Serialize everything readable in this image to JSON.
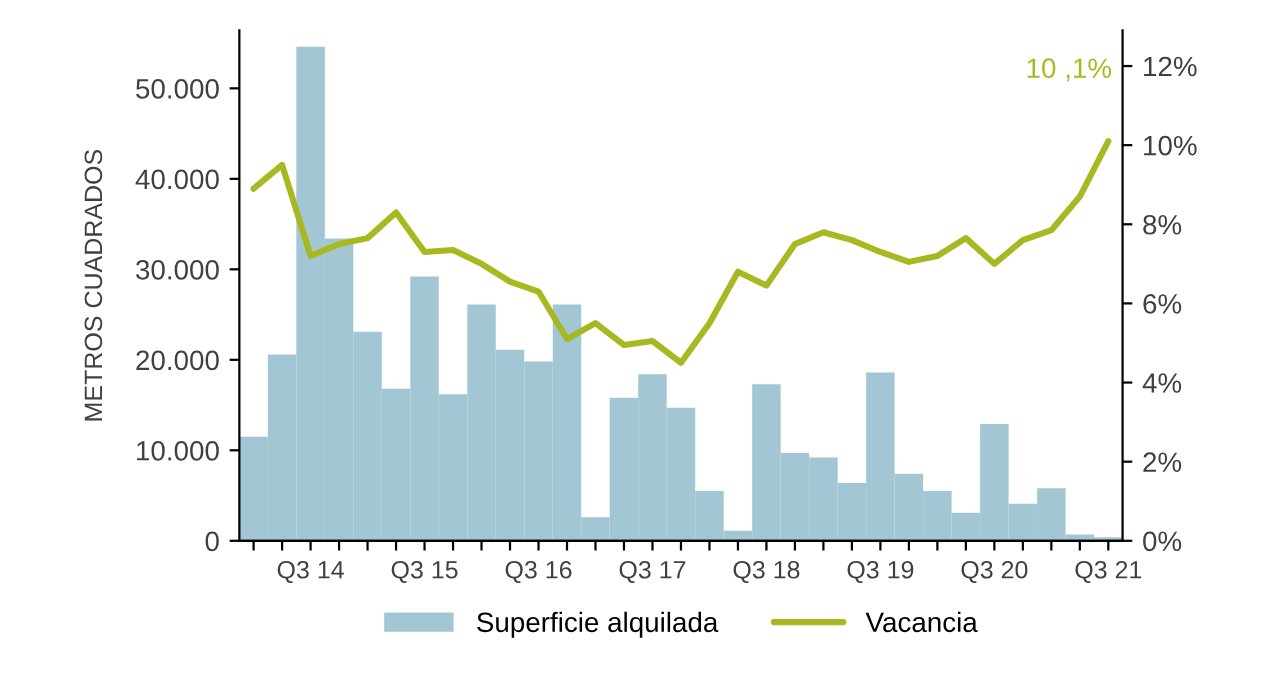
{
  "chart_data": {
    "type": "bar",
    "ylabel": "METROS CUADRADOS",
    "categories": [
      null,
      null,
      "Q3 14",
      null,
      null,
      null,
      "Q3 15",
      null,
      null,
      null,
      "Q3 16",
      null,
      null,
      null,
      "Q3 17",
      null,
      null,
      null,
      "Q3 18",
      null,
      null,
      null,
      "Q3 19",
      null,
      null,
      null,
      "Q3 20",
      null,
      null,
      null,
      "Q3 21"
    ],
    "series": [
      {
        "name": "Superficie alquilada",
        "color": "#a3c6d4",
        "values": [
          11500,
          20600,
          54600,
          33400,
          23100,
          16800,
          29200,
          16200,
          26100,
          21100,
          19800,
          26100,
          2600,
          15800,
          18400,
          14700,
          5500,
          1100,
          17300,
          9700,
          9200,
          6400,
          18600,
          7400,
          5500,
          3100,
          12900,
          4100,
          5800,
          700,
          400
        ]
      },
      {
        "name": "Vacancia",
        "type": "line",
        "axis": "y2",
        "color": "#a8b820",
        "values": [
          8.9,
          9.5,
          7.2,
          7.5,
          7.65,
          8.3,
          7.3,
          7.35,
          7.0,
          6.55,
          6.3,
          5.1,
          5.5,
          4.95,
          5.05,
          4.5,
          5.5,
          6.8,
          6.45,
          7.5,
          7.8,
          7.6,
          7.3,
          7.05,
          7.2,
          7.65,
          7.0,
          7.6,
          7.85,
          8.7,
          10.1
        ]
      }
    ],
    "ylim": [
      0,
      56400
    ],
    "yticks": [
      {
        "value": 0,
        "label": "0"
      },
      {
        "value": 10000,
        "label": "10.000"
      },
      {
        "value": 20000,
        "label": "20.000"
      },
      {
        "value": 30000,
        "label": "30.000"
      },
      {
        "value": 40000,
        "label": "40.000"
      },
      {
        "value": 50000,
        "label": "50.000"
      }
    ],
    "y2lim": [
      0,
      12.9
    ],
    "y2ticks": [
      {
        "value": 0,
        "label": "0%"
      },
      {
        "value": 2,
        "label": "2%"
      },
      {
        "value": 4,
        "label": "4%"
      },
      {
        "value": 6,
        "label": "6%"
      },
      {
        "value": 8,
        "label": "8%"
      },
      {
        "value": 10,
        "label": "10%"
      },
      {
        "value": 12,
        "label": "12%"
      }
    ],
    "annotations": [
      "10 ,1%"
    ],
    "legend": "bottom",
    "grid": false
  }
}
